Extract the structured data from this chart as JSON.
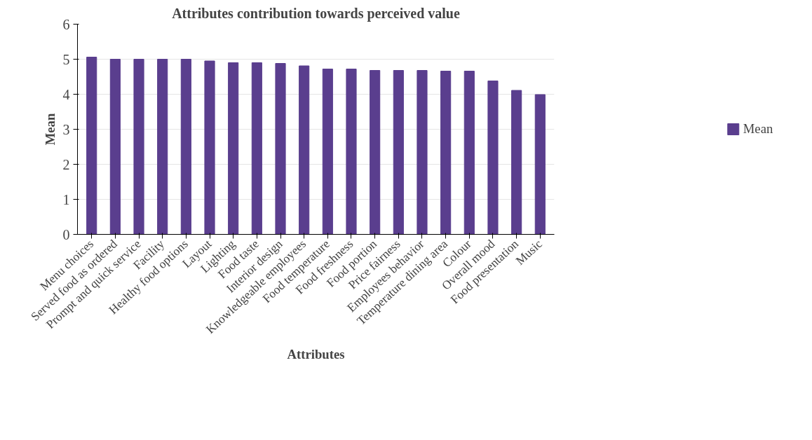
{
  "chart_data": {
    "type": "bar",
    "title": "Attributes contribution towards perceived value",
    "xlabel": "Attributes",
    "ylabel": "Mean",
    "categories": [
      "Menu choices",
      "Served food as ordered",
      "Prompt and quick service",
      "Facility",
      "Healthy food options",
      "Layout",
      "Lighting",
      "Food taste",
      "Interior design",
      "Knowledgeable employees",
      "Food temperature",
      "Food freshness",
      "Food portion",
      "Price fairness",
      "Employees behavior",
      "Temperature dining area",
      "Colour",
      "Overall mood",
      "Food presentation",
      "Music"
    ],
    "series": [
      {
        "name": "Mean",
        "color": "#5a3e8e",
        "values": [
          5.06,
          5.0,
          5.0,
          5.0,
          5.0,
          4.95,
          4.9,
          4.9,
          4.88,
          4.81,
          4.72,
          4.72,
          4.68,
          4.68,
          4.68,
          4.66,
          4.66,
          4.38,
          4.11,
          3.99
        ]
      }
    ],
    "ylim": [
      0,
      6
    ],
    "yticks": [
      0,
      1,
      2,
      3,
      4,
      5,
      6
    ],
    "grid": "y",
    "legend": "right"
  }
}
